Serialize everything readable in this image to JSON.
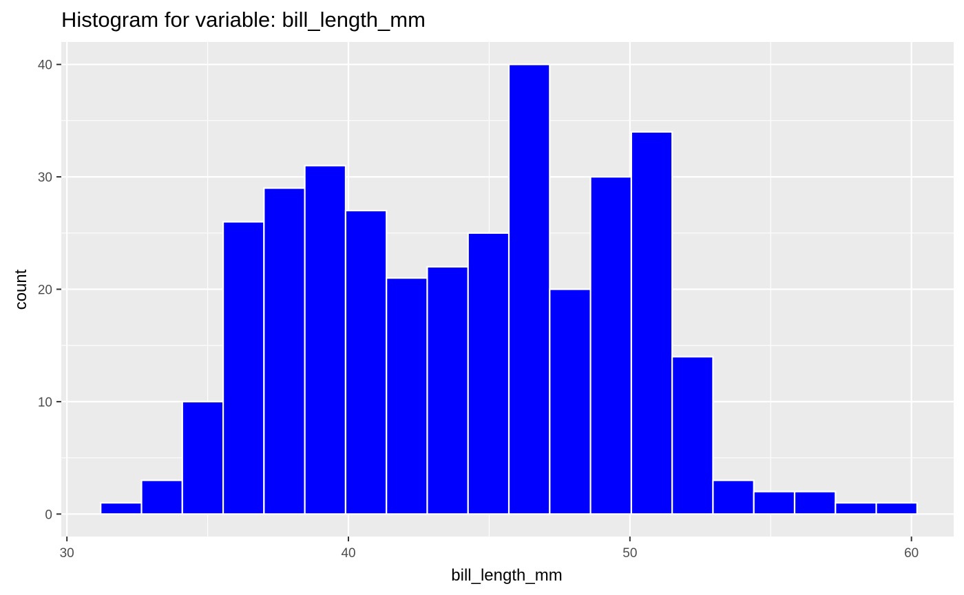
{
  "chart_data": {
    "type": "bar",
    "subtype": "histogram",
    "title": "Histogram for variable: bill_length_mm",
    "xlabel": "bill_length_mm",
    "ylabel": "count",
    "xlim": [
      29.8,
      61.5
    ],
    "ylim": [
      -2,
      42
    ],
    "x_ticks": [
      30,
      40,
      50,
      60
    ],
    "y_ticks": [
      0,
      10,
      20,
      30,
      40
    ],
    "bins": [
      {
        "x0": 31.2,
        "x1": 32.65,
        "count": 1
      },
      {
        "x0": 32.65,
        "x1": 34.1,
        "count": 3
      },
      {
        "x0": 34.1,
        "x1": 35.55,
        "count": 10
      },
      {
        "x0": 35.55,
        "x1": 37.0,
        "count": 26
      },
      {
        "x0": 37.0,
        "x1": 38.45,
        "count": 29
      },
      {
        "x0": 38.45,
        "x1": 39.9,
        "count": 31
      },
      {
        "x0": 39.9,
        "x1": 41.35,
        "count": 27
      },
      {
        "x0": 41.35,
        "x1": 42.8,
        "count": 21
      },
      {
        "x0": 42.8,
        "x1": 44.25,
        "count": 22
      },
      {
        "x0": 44.25,
        "x1": 45.7,
        "count": 25
      },
      {
        "x0": 45.7,
        "x1": 47.15,
        "count": 40
      },
      {
        "x0": 47.15,
        "x1": 48.6,
        "count": 20
      },
      {
        "x0": 48.6,
        "x1": 50.05,
        "count": 30
      },
      {
        "x0": 50.05,
        "x1": 51.5,
        "count": 34
      },
      {
        "x0": 51.5,
        "x1": 52.95,
        "count": 14
      },
      {
        "x0": 52.95,
        "x1": 54.4,
        "count": 3
      },
      {
        "x0": 54.4,
        "x1": 55.85,
        "count": 2
      },
      {
        "x0": 55.85,
        "x1": 57.3,
        "count": 2
      },
      {
        "x0": 57.3,
        "x1": 58.75,
        "count": 1
      },
      {
        "x0": 58.75,
        "x1": 60.2,
        "count": 1
      }
    ],
    "grid": true,
    "legend": "none",
    "colors": {
      "bar_fill": "#0000ff",
      "bar_outline": "#ffffff",
      "panel_background": "#ebebeb",
      "grid": "#ffffff",
      "tick_label": "#4d4d4d",
      "text": "#000000"
    }
  }
}
